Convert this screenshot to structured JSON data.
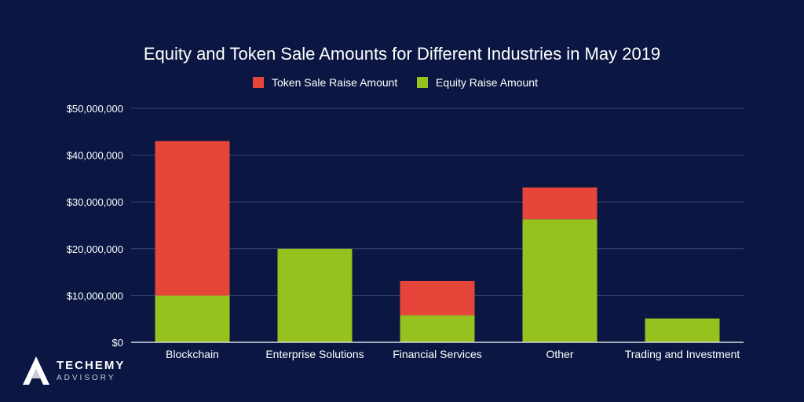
{
  "chart_data": {
    "type": "bar",
    "stacked": true,
    "title": "Equity and Token Sale Amounts for Different Industries in May 2019",
    "categories": [
      "Blockchain",
      "Enterprise Solutions",
      "Financial Services",
      "Other",
      "Trading and Investment"
    ],
    "series": [
      {
        "name": "Equity Raise Amount",
        "color": "#96c11f",
        "values": [
          10000000,
          20000000,
          5800000,
          26300000,
          5100000
        ]
      },
      {
        "name": "Token Sale Raise Amount",
        "color": "#e6463a",
        "values": [
          33000000,
          0,
          7300000,
          6800000,
          0
        ]
      }
    ],
    "legend_order": [
      "Token Sale Raise Amount",
      "Equity Raise Amount"
    ],
    "legend_position": "top-center",
    "ylim": [
      0,
      50000000
    ],
    "yticks": [
      {
        "value": 0,
        "label": "$0"
      },
      {
        "value": 10000000,
        "label": "$10,000,000"
      },
      {
        "value": 20000000,
        "label": "$20,000,000"
      },
      {
        "value": 30000000,
        "label": "$30,000,000"
      },
      {
        "value": 40000000,
        "label": "$40,000,000"
      },
      {
        "value": 50000000,
        "label": "$50,000,000"
      }
    ],
    "xlabel": "",
    "ylabel": "",
    "grid": true
  },
  "branding": {
    "name": "TECHEMY",
    "subtitle": "ADVISORY"
  },
  "colors": {
    "background": "#0b1742",
    "logo_accent": "#c9ccd6"
  }
}
